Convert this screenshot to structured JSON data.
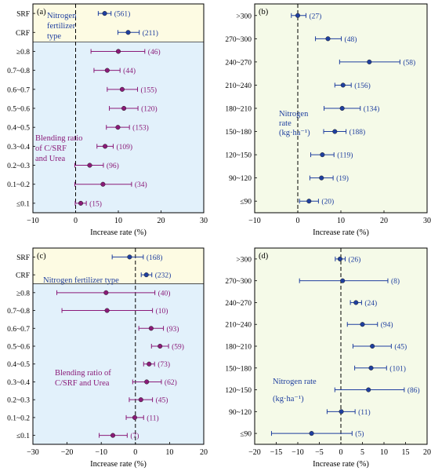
{
  "colors": {
    "blue": "#1f3f9f",
    "purple": "#8a1a78",
    "yellow_bg": "#fdfbe3",
    "blue_bg": "#e2f1fb",
    "green_bg": "#f5fae8",
    "axis": "#000000"
  },
  "icons": {
    "marker": "filled-circle",
    "errorbar": "horizontal-whisker"
  },
  "chart_data": [
    {
      "type": "scatter",
      "panel_label": "(a)",
      "xlabel": "Increase rate (%)",
      "xlim": [
        -10,
        30
      ],
      "xticks": [
        -10,
        0,
        10,
        20,
        30
      ],
      "zero_line": "dashed",
      "groups": [
        {
          "name": "Nitrogen fertilizer type",
          "label_lines": [
            "Nitrogen",
            "fertilizer",
            "type"
          ],
          "label_color": "#1f3f9f",
          "background": "#fdfbe3",
          "marker_color": "#1f3f9f",
          "items": [
            {
              "category": "SRF",
              "value": 6.8,
              "ci": [
                5.3,
                8.3
              ],
              "n": "(561)"
            },
            {
              "category": "CRF",
              "value": 12.3,
              "ci": [
                9.9,
                14.9
              ],
              "n": "(211)"
            }
          ]
        },
        {
          "name": "Blending ratio of C/SRF and Urea",
          "label_lines": [
            "Blending ratio",
            "of C/SRF",
            "and Urea"
          ],
          "label_color": "#8a1a78",
          "background": "#e2f1fb",
          "marker_color": "#8a1a78",
          "items": [
            {
              "category": "≥0.8",
              "value": 10.0,
              "ci": [
                3.6,
                16.2
              ],
              "n": "(46)"
            },
            {
              "category": "0.7~0.8",
              "value": 7.4,
              "ci": [
                4.3,
                10.4
              ],
              "n": "(44)"
            },
            {
              "category": "0.6~0.7",
              "value": 10.9,
              "ci": [
                7.4,
                14.5
              ],
              "n": "(155)"
            },
            {
              "category": "0.5~0.6",
              "value": 11.3,
              "ci": [
                7.9,
                14.6
              ],
              "n": "(120)"
            },
            {
              "category": "0.4~0.5",
              "value": 9.9,
              "ci": [
                7.2,
                12.6
              ],
              "n": "(153)"
            },
            {
              "category": "0.3~0.4",
              "value": 6.9,
              "ci": [
                5.0,
                8.8
              ],
              "n": "(109)"
            },
            {
              "category": "0.2~0.3",
              "value": 3.3,
              "ci": [
                -0.2,
                6.5
              ],
              "n": "(96)"
            },
            {
              "category": "0.1~0.2",
              "value": 6.4,
              "ci": [
                -0.2,
                13.1
              ],
              "n": "(34)"
            },
            {
              "category": "≤0.1",
              "value": 1.2,
              "ci": [
                -0.1,
                2.5
              ],
              "n": "(15)"
            }
          ]
        }
      ]
    },
    {
      "type": "scatter",
      "panel_label": "(b)",
      "xlabel": "Increase rate (%)",
      "xlim": [
        -10,
        30
      ],
      "xticks": [
        -10,
        0,
        10,
        20,
        30
      ],
      "zero_line": "dashed",
      "groups": [
        {
          "name": "Nitrogen rate (kg·ha−1)",
          "label_lines": [
            "Nitrogen",
            "rate",
            "(kg·ha⁻¹)"
          ],
          "label_color": "#1f3f9f",
          "background": "#f5fae8",
          "marker_color": "#1f3f9f",
          "items": [
            {
              "category": ">300",
              "value": 0.0,
              "ci": [
                -1.5,
                1.9
              ],
              "n": "(27)"
            },
            {
              "category": "270~300",
              "value": 7.0,
              "ci": [
                4.1,
                10.1
              ],
              "n": "(48)"
            },
            {
              "category": "240~270",
              "value": 16.6,
              "ci": [
                9.7,
                23.7
              ],
              "n": "(58)"
            },
            {
              "category": "210~240",
              "value": 10.5,
              "ci": [
                8.6,
                12.4
              ],
              "n": "(156)"
            },
            {
              "category": "180~210",
              "value": 10.3,
              "ci": [
                6.1,
                14.5
              ],
              "n": "(134)"
            },
            {
              "category": "150~180",
              "value": 8.6,
              "ci": [
                6.0,
                11.2
              ],
              "n": "(188)"
            },
            {
              "category": "120~150",
              "value": 5.7,
              "ci": [
                3.0,
                8.4
              ],
              "n": "(119)"
            },
            {
              "category": "90~120",
              "value": 5.5,
              "ci": [
                2.8,
                8.2
              ],
              "n": "(19)"
            },
            {
              "category": "≤90",
              "value": 2.6,
              "ci": [
                0.4,
                4.8
              ],
              "n": "(20)"
            }
          ]
        }
      ]
    },
    {
      "type": "scatter",
      "panel_label": "(c)",
      "xlabel": "Increase rate (%)",
      "xlim": [
        -30,
        20
      ],
      "xticks": [
        -30,
        -20,
        -10,
        0,
        10,
        20
      ],
      "zero_line": "dashed",
      "groups": [
        {
          "name": "Nitrogen fertilizer type",
          "label_lines": [
            "Nitrogen fertilizer type"
          ],
          "label_color": "#1f3f9f",
          "background": "#fdfbe3",
          "marker_color": "#1f3f9f",
          "items": [
            {
              "category": "SRF",
              "value": -1.7,
              "ci": [
                -6.8,
                2.3
              ],
              "n": "(168)"
            },
            {
              "category": "CRF",
              "value": 3.2,
              "ci": [
                1.7,
                4.8
              ],
              "n": "(232)"
            }
          ]
        },
        {
          "name": "Blending ratio of C/SRF and Urea",
          "label_lines": [
            "Blending ratio of",
            "C/SRF and Urea"
          ],
          "label_color": "#8a1a78",
          "background": "#e2f1fb",
          "marker_color": "#8a1a78",
          "items": [
            {
              "category": "≥0.8",
              "value": -8.6,
              "ci": [
                -23.0,
                5.7
              ],
              "n": "(40)"
            },
            {
              "category": "0.7~0.8",
              "value": -8.3,
              "ci": [
                -21.5,
                5.0
              ],
              "n": "(10)"
            },
            {
              "category": "0.6~0.7",
              "value": 4.6,
              "ci": [
                1.0,
                8.2
              ],
              "n": "(93)"
            },
            {
              "category": "0.5~0.6",
              "value": 7.2,
              "ci": [
                4.7,
                9.7
              ],
              "n": "(59)"
            },
            {
              "category": "0.4~0.5",
              "value": 4.0,
              "ci": [
                2.4,
                5.6
              ],
              "n": "(73)"
            },
            {
              "category": "0.3~0.4",
              "value": 3.3,
              "ci": [
                -0.8,
                7.6
              ],
              "n": "(62)"
            },
            {
              "category": "0.2~0.3",
              "value": 1.6,
              "ci": [
                -1.8,
                5.0
              ],
              "n": "(45)"
            },
            {
              "category": "0.1~0.2",
              "value": -0.2,
              "ci": [
                -2.7,
                2.4
              ],
              "n": "(11)"
            },
            {
              "category": "≤0.1",
              "value": -6.6,
              "ci": [
                -10.6,
                -2.4
              ],
              "n": "(7)"
            }
          ]
        }
      ]
    },
    {
      "type": "scatter",
      "panel_label": "(d)",
      "xlabel": "Increase rate (%)",
      "xlim": [
        -20,
        20
      ],
      "xticks": [
        -20,
        -15,
        -10,
        -5,
        0,
        5,
        10,
        15,
        20
      ],
      "zero_line": "dashed",
      "groups": [
        {
          "name": "Nitrogen rate (kg·ha−1)",
          "label_lines": [
            "Nitrogen rate",
            "(kg·ha⁻¹)"
          ],
          "label_color": "#1f3f9f",
          "background": "#f5fae8",
          "marker_color": "#1f3f9f",
          "items": [
            {
              "category": ">300",
              "value": -0.2,
              "ci": [
                -1.3,
                1.0
              ],
              "n": "(26)"
            },
            {
              "category": "270~300",
              "value": 0.4,
              "ci": [
                -9.6,
                10.9
              ],
              "n": "(8)"
            },
            {
              "category": "240~270",
              "value": 3.5,
              "ci": [
                2.2,
                4.8
              ],
              "n": "(24)"
            },
            {
              "category": "210~240",
              "value": 5.0,
              "ci": [
                1.5,
                8.5
              ],
              "n": "(94)"
            },
            {
              "category": "180~210",
              "value": 7.3,
              "ci": [
                2.8,
                11.7
              ],
              "n": "(45)"
            },
            {
              "category": "150~180",
              "value": 7.0,
              "ci": [
                3.2,
                10.6
              ],
              "n": "(101)"
            },
            {
              "category": "120~150",
              "value": 6.4,
              "ci": [
                -1.4,
                14.7
              ],
              "n": "(86)"
            },
            {
              "category": "90~120",
              "value": 0.1,
              "ci": [
                -3.2,
                3.3
              ],
              "n": "(11)"
            },
            {
              "category": "≤90",
              "value": -6.8,
              "ci": [
                -16.1,
                2.6
              ],
              "n": "(5)"
            }
          ]
        }
      ]
    }
  ]
}
